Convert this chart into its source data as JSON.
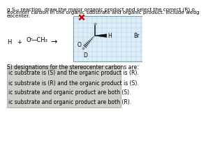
{
  "bg_color": "#ffffff",
  "line1": "g Sₙ₂ reaction, draw the major organic product and select the correct (R) o",
  "line2": "eocenter carbon in the organic substrate and organic product. Include wedg",
  "line3": "eocenter.",
  "reactant_plus": "+",
  "reactant_mol": "O—CH₃",
  "reactant_arrow": "→",
  "label_Br": "Br",
  "label_H": "H",
  "label_O": "O",
  "label_D": "D",
  "question_text": "S) designations for the stereocenter carbons are:",
  "choice1": "ic substrate is (S) and the organic product is (R).",
  "choice2": "ic substrate is (R) and the organic product is (S).",
  "choice3": "ic substrate and organic product are both (S).",
  "choice4": "ic substrate and organic product are both (R).",
  "grid_color": "#aecde0",
  "grid_bg": "#deeef8",
  "choice_bg": "#d0d0c8",
  "choice_border": "#aaaaaa",
  "x_mark_color": "#cc0000",
  "bond_color": "#111111",
  "circle_color": "#909090",
  "font_size_header": 5.2,
  "font_size_reactant": 6.0,
  "font_size_mol": 5.5,
  "font_size_choice": 5.5
}
